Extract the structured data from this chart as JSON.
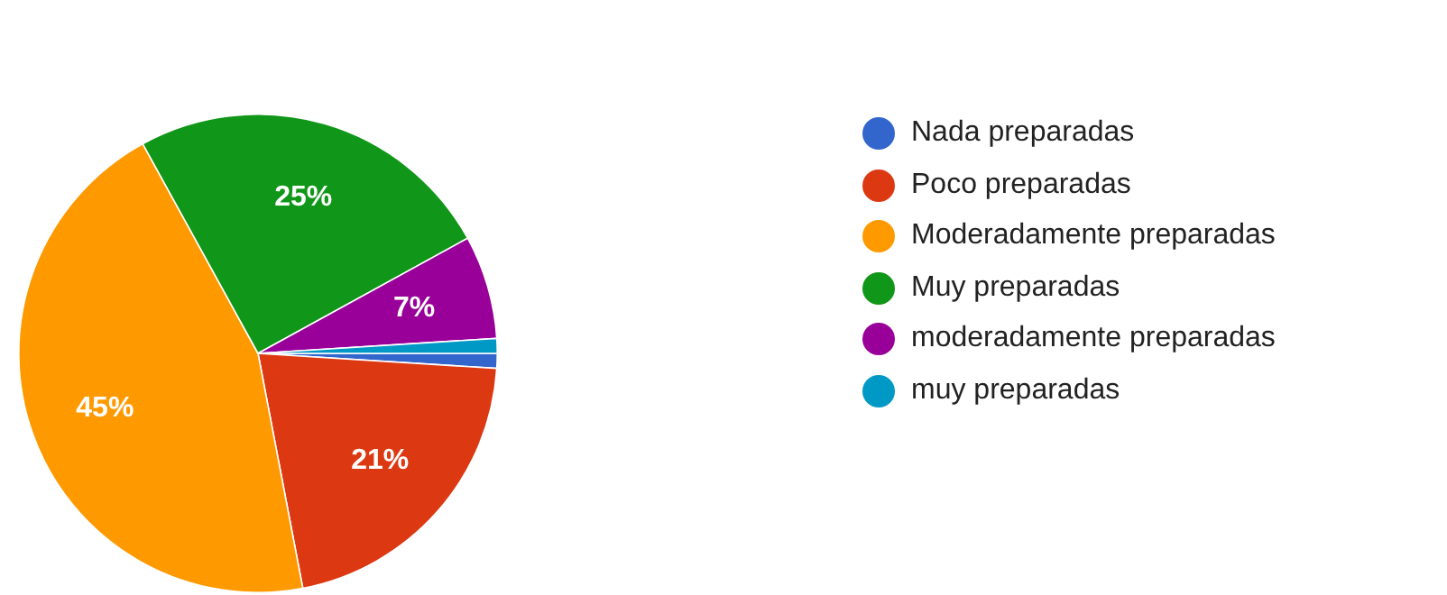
{
  "chart_data": {
    "type": "pie",
    "categories": [
      "Nada preparadas",
      "Poco preparadas",
      "Moderadamente preparadas",
      "Muy preparadas",
      "moderadamente preparadas",
      "muy preparadas"
    ],
    "values": [
      1,
      21,
      45,
      25,
      7,
      1
    ],
    "colors": [
      "#3366cc",
      "#dc3912",
      "#ff9900",
      "#109618",
      "#990099",
      "#0099c6"
    ],
    "value_labels": [
      null,
      "21%",
      "45%",
      "25%",
      "7%",
      null
    ],
    "legend": "right"
  }
}
